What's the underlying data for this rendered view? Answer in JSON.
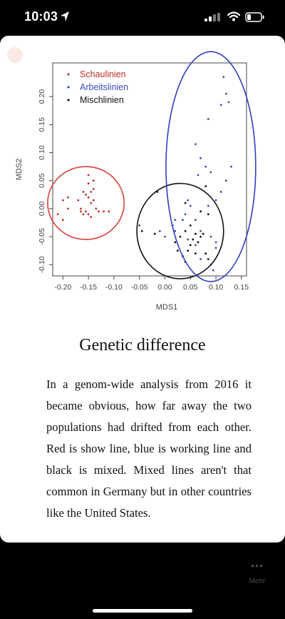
{
  "status_bar": {
    "time": "10:03"
  },
  "chart_data": {
    "type": "scatter",
    "xlabel": "MDS1",
    "ylabel": "MDS2",
    "xlim": [
      -0.22,
      0.16
    ],
    "ylim": [
      -0.12,
      0.26
    ],
    "x_ticks": [
      -0.2,
      -0.15,
      -0.1,
      -0.05,
      0.0,
      0.05,
      0.1,
      0.15
    ],
    "x_tick_labels": [
      "-0.20",
      "-0.15",
      "-0.10",
      "-0.05",
      "0.00",
      "0.05",
      "0.10",
      "0.15"
    ],
    "y_ticks": [
      -0.1,
      -0.05,
      0.0,
      0.05,
      0.1,
      0.15,
      0.2
    ],
    "y_tick_labels": [
      "-0.10",
      "-0.05",
      "0.00",
      "0.05",
      "0.10",
      "0.15",
      "0.20"
    ],
    "legend_position": "top-left",
    "series": [
      {
        "name": "Schaulinien",
        "color": "#c0302a",
        "points": [
          [
            -0.2,
            0.015
          ],
          [
            -0.19,
            0.02
          ],
          [
            -0.21,
            -0.01
          ],
          [
            -0.19,
            0.0
          ],
          [
            -0.17,
            0.015
          ],
          [
            -0.165,
            0.0
          ],
          [
            -0.16,
            0.03
          ],
          [
            -0.155,
            0.025
          ],
          [
            -0.15,
            0.045
          ],
          [
            -0.15,
            0.02
          ],
          [
            -0.145,
            0.03
          ],
          [
            -0.145,
            0.01
          ],
          [
            -0.14,
            0.035
          ],
          [
            -0.14,
            0.015
          ],
          [
            -0.155,
            -0.005
          ],
          [
            -0.16,
            -0.01
          ],
          [
            -0.15,
            -0.01
          ],
          [
            -0.145,
            -0.015
          ],
          [
            -0.165,
            -0.005
          ],
          [
            -0.13,
            -0.005
          ],
          [
            -0.12,
            -0.005
          ],
          [
            -0.135,
            0.0
          ],
          [
            -0.15,
            0.06
          ],
          [
            -0.14,
            0.05
          ],
          [
            -0.2,
            -0.02
          ],
          [
            -0.11,
            -0.005
          ]
        ]
      },
      {
        "name": "Arbeitslinien",
        "color": "#3a4dbb",
        "points": [
          [
            0.115,
            0.235
          ],
          [
            0.12,
            0.205
          ],
          [
            0.125,
            0.19
          ],
          [
            0.11,
            0.185
          ],
          [
            0.085,
            0.16
          ],
          [
            0.06,
            0.115
          ],
          [
            0.07,
            0.09
          ],
          [
            0.08,
            0.075
          ],
          [
            0.13,
            0.075
          ],
          [
            0.12,
            0.05
          ],
          [
            0.09,
            0.065
          ],
          [
            0.065,
            0.06
          ],
          [
            0.11,
            0.03
          ],
          [
            0.1,
            0.015
          ],
          [
            0.085,
            0.005
          ],
          [
            0.045,
            0.015
          ],
          [
            0.05,
            0.005
          ],
          [
            0.04,
            -0.01
          ],
          [
            0.035,
            -0.02
          ],
          [
            0.06,
            -0.02
          ],
          [
            0.07,
            -0.04
          ],
          [
            0.09,
            -0.05
          ],
          [
            0.1,
            -0.06
          ],
          [
            0.1,
            -0.07
          ],
          [
            0.08,
            -0.08
          ],
          [
            0.07,
            -0.09
          ],
          [
            0.09,
            -0.1
          ],
          [
            0.095,
            -0.11
          ],
          [
            0.06,
            -0.065
          ],
          [
            0.045,
            -0.055
          ],
          [
            0.02,
            -0.04
          ],
          [
            0.015,
            -0.03
          ],
          [
            0.0,
            -0.05
          ],
          [
            -0.05,
            -0.03
          ],
          [
            -0.01,
            -0.04
          ],
          [
            0.02,
            -0.02
          ]
        ]
      },
      {
        "name": "Mischlinien",
        "color": "#111111",
        "points": [
          [
            -0.015,
            0.03
          ],
          [
            0.04,
            0.01
          ],
          [
            0.07,
            -0.005
          ],
          [
            0.08,
            0.04
          ],
          [
            0.085,
            -0.01
          ],
          [
            0.05,
            -0.03
          ],
          [
            0.04,
            -0.04
          ],
          [
            0.06,
            -0.045
          ],
          [
            0.055,
            -0.055
          ],
          [
            0.07,
            -0.05
          ],
          [
            0.065,
            -0.06
          ],
          [
            0.02,
            -0.06
          ],
          [
            0.025,
            -0.075
          ],
          [
            0.035,
            -0.085
          ],
          [
            0.04,
            -0.095
          ],
          [
            0.05,
            -0.065
          ],
          [
            0.045,
            -0.075
          ],
          [
            0.08,
            -0.08
          ],
          [
            0.06,
            -0.08
          ],
          [
            -0.045,
            -0.04
          ],
          [
            -0.02,
            -0.045
          ],
          [
            0.03,
            -0.05
          ],
          [
            0.075,
            -0.045
          ],
          [
            0.085,
            -0.09
          ]
        ]
      }
    ],
    "ellipses": [
      {
        "color": "#d9413a",
        "cx": -0.155,
        "cy": 0.01,
        "rx": 0.075,
        "ry": 0.065
      },
      {
        "color": "#111111",
        "cx": 0.03,
        "cy": -0.04,
        "rx": 0.085,
        "ry": 0.085
      },
      {
        "color": "#2f3fc0",
        "cx": 0.09,
        "cy": 0.075,
        "rx": 0.088,
        "ry": 0.205
      }
    ]
  },
  "article": {
    "title": "Genetic difference",
    "body": "In a genom-wide analysis from 2016 it became obvious, how far away the two populations had drifted from each other. Red is show line, blue is working line and black is mixed. Mixed lines aren't that common in Germany but in other countries like the United States."
  },
  "bottom_bar": {
    "more_label": "Mehr"
  }
}
